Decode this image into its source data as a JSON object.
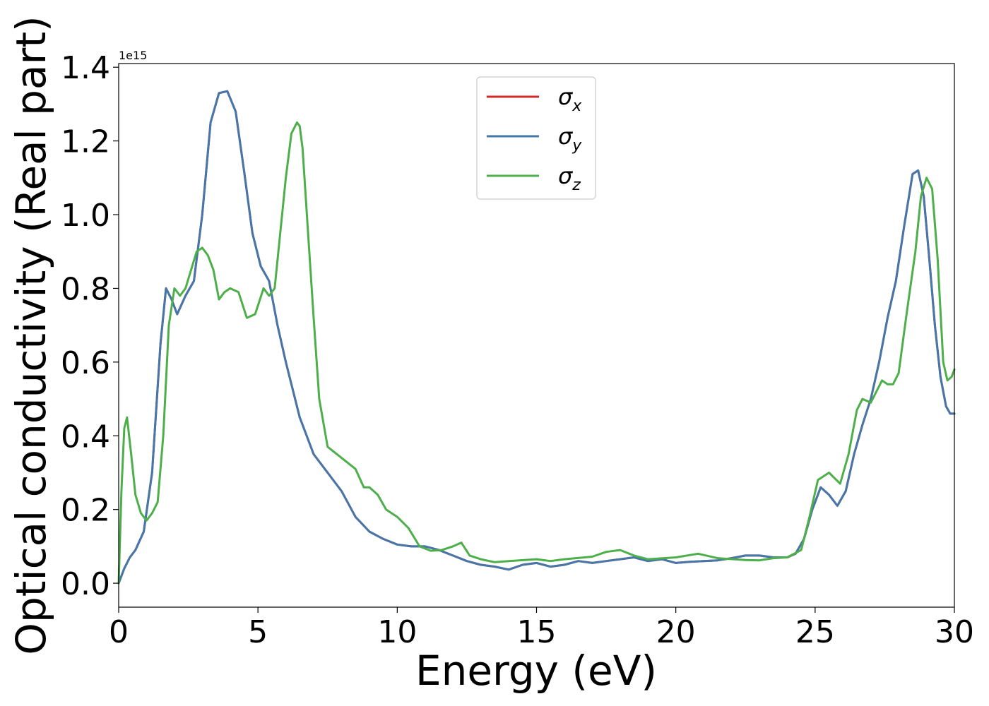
{
  "chart_data": {
    "type": "line",
    "title": "",
    "xlabel": "Energy (eV)",
    "ylabel": "Optical conductivity (Real part)",
    "y_offset_text": "1e15",
    "y_scale": 1000000000000000.0,
    "xlim": [
      0,
      30
    ],
    "ylim": [
      -0.065,
      1.41
    ],
    "x_ticks": [
      0,
      5,
      10,
      15,
      20,
      25,
      30
    ],
    "x_tick_labels": [
      "0",
      "5",
      "10",
      "15",
      "20",
      "25",
      "30"
    ],
    "y_ticks": [
      0.0,
      0.2,
      0.4,
      0.6,
      0.8,
      1.0,
      1.2,
      1.4
    ],
    "y_tick_labels": [
      "0.0",
      "0.2",
      "0.4",
      "0.6",
      "0.8",
      "1.0",
      "1.2",
      "1.4"
    ],
    "grid": false,
    "legend_position": "upper-center",
    "series": [
      {
        "name": "σx",
        "symbol": "σ",
        "subscript": "x",
        "color": "#d62728",
        "x": [
          0.0,
          0.2,
          0.4,
          0.6,
          0.9,
          1.2,
          1.5,
          1.7,
          1.9,
          2.1,
          2.4,
          2.7,
          3.0,
          3.3,
          3.6,
          3.9,
          4.2,
          4.5,
          4.8,
          5.1,
          5.4,
          5.7,
          6.0,
          6.5,
          7.0,
          7.5,
          8.0,
          8.5,
          9.0,
          9.5,
          10.0,
          10.5,
          11.0,
          11.5,
          12.0,
          12.5,
          13.0,
          13.5,
          14.0,
          14.5,
          15.0,
          15.5,
          16.0,
          16.5,
          17.0,
          17.5,
          18.0,
          18.5,
          19.0,
          19.5,
          20.0,
          20.5,
          21.0,
          21.5,
          22.0,
          22.5,
          23.0,
          23.5,
          24.0,
          24.3,
          24.6,
          24.9,
          25.2,
          25.5,
          25.8,
          26.1,
          26.4,
          26.7,
          27.0,
          27.3,
          27.6,
          27.9,
          28.2,
          28.5,
          28.7,
          28.9,
          29.1,
          29.3,
          29.5,
          29.7,
          29.85,
          30.0
        ],
        "y": [
          0.0,
          0.04,
          0.07,
          0.09,
          0.14,
          0.3,
          0.65,
          0.8,
          0.77,
          0.73,
          0.78,
          0.82,
          1.0,
          1.25,
          1.33,
          1.335,
          1.28,
          1.12,
          0.95,
          0.86,
          0.82,
          0.7,
          0.6,
          0.45,
          0.35,
          0.3,
          0.25,
          0.18,
          0.14,
          0.12,
          0.105,
          0.1,
          0.1,
          0.09,
          0.075,
          0.06,
          0.05,
          0.045,
          0.037,
          0.05,
          0.055,
          0.045,
          0.05,
          0.06,
          0.055,
          0.06,
          0.065,
          0.07,
          0.06,
          0.065,
          0.055,
          0.058,
          0.06,
          0.062,
          0.068,
          0.075,
          0.075,
          0.07,
          0.07,
          0.08,
          0.12,
          0.2,
          0.26,
          0.24,
          0.21,
          0.25,
          0.35,
          0.43,
          0.5,
          0.6,
          0.72,
          0.82,
          0.97,
          1.11,
          1.12,
          1.05,
          0.88,
          0.7,
          0.56,
          0.48,
          0.46,
          0.46
        ]
      },
      {
        "name": "σy",
        "symbol": "σ",
        "subscript": "y",
        "color": "#4477aa",
        "x": [
          0.0,
          0.2,
          0.4,
          0.6,
          0.9,
          1.2,
          1.5,
          1.7,
          1.9,
          2.1,
          2.4,
          2.7,
          3.0,
          3.3,
          3.6,
          3.9,
          4.2,
          4.5,
          4.8,
          5.1,
          5.4,
          5.7,
          6.0,
          6.5,
          7.0,
          7.5,
          8.0,
          8.5,
          9.0,
          9.5,
          10.0,
          10.5,
          11.0,
          11.5,
          12.0,
          12.5,
          13.0,
          13.5,
          14.0,
          14.5,
          15.0,
          15.5,
          16.0,
          16.5,
          17.0,
          17.5,
          18.0,
          18.5,
          19.0,
          19.5,
          20.0,
          20.5,
          21.0,
          21.5,
          22.0,
          22.5,
          23.0,
          23.5,
          24.0,
          24.3,
          24.6,
          24.9,
          25.2,
          25.5,
          25.8,
          26.1,
          26.4,
          26.7,
          27.0,
          27.3,
          27.6,
          27.9,
          28.2,
          28.5,
          28.7,
          28.9,
          29.1,
          29.3,
          29.5,
          29.7,
          29.85,
          30.0
        ],
        "y": [
          0.0,
          0.04,
          0.07,
          0.09,
          0.14,
          0.3,
          0.65,
          0.8,
          0.77,
          0.73,
          0.78,
          0.82,
          1.0,
          1.25,
          1.33,
          1.335,
          1.28,
          1.12,
          0.95,
          0.86,
          0.82,
          0.7,
          0.6,
          0.45,
          0.35,
          0.3,
          0.25,
          0.18,
          0.14,
          0.12,
          0.105,
          0.1,
          0.1,
          0.09,
          0.075,
          0.06,
          0.05,
          0.045,
          0.037,
          0.05,
          0.055,
          0.045,
          0.05,
          0.06,
          0.055,
          0.06,
          0.065,
          0.07,
          0.06,
          0.065,
          0.055,
          0.058,
          0.06,
          0.062,
          0.068,
          0.075,
          0.075,
          0.07,
          0.07,
          0.08,
          0.12,
          0.2,
          0.26,
          0.24,
          0.21,
          0.25,
          0.35,
          0.43,
          0.5,
          0.6,
          0.72,
          0.82,
          0.97,
          1.11,
          1.12,
          1.05,
          0.88,
          0.7,
          0.56,
          0.48,
          0.46,
          0.46
        ]
      },
      {
        "name": "σz",
        "symbol": "σ",
        "subscript": "z",
        "color": "#4daf4a",
        "x": [
          0.0,
          0.1,
          0.2,
          0.3,
          0.45,
          0.6,
          0.8,
          1.0,
          1.2,
          1.4,
          1.6,
          1.8,
          2.0,
          2.2,
          2.4,
          2.6,
          2.8,
          3.0,
          3.2,
          3.4,
          3.6,
          3.8,
          4.0,
          4.3,
          4.6,
          4.9,
          5.2,
          5.4,
          5.6,
          5.8,
          6.0,
          6.2,
          6.4,
          6.5,
          6.6,
          6.8,
          7.0,
          7.2,
          7.5,
          8.0,
          8.5,
          8.8,
          9.0,
          9.3,
          9.6,
          10.0,
          10.4,
          10.8,
          11.2,
          11.6,
          12.0,
          12.3,
          12.6,
          13.0,
          13.5,
          14.0,
          15.0,
          15.5,
          16.0,
          17.0,
          17.5,
          18.0,
          18.5,
          19.0,
          20.0,
          20.8,
          21.5,
          22.5,
          23.0,
          23.5,
          24.0,
          24.5,
          24.8,
          25.1,
          25.5,
          25.9,
          26.2,
          26.5,
          26.7,
          27.0,
          27.2,
          27.4,
          27.6,
          27.8,
          28.0,
          28.3,
          28.6,
          28.8,
          29.0,
          29.2,
          29.4,
          29.6,
          29.75,
          29.9,
          30.0
        ],
        "y": [
          0.0,
          0.25,
          0.42,
          0.45,
          0.35,
          0.24,
          0.19,
          0.17,
          0.19,
          0.22,
          0.4,
          0.7,
          0.8,
          0.78,
          0.8,
          0.85,
          0.9,
          0.91,
          0.89,
          0.85,
          0.77,
          0.79,
          0.8,
          0.79,
          0.72,
          0.73,
          0.8,
          0.78,
          0.8,
          0.95,
          1.1,
          1.22,
          1.25,
          1.24,
          1.18,
          0.95,
          0.72,
          0.5,
          0.37,
          0.34,
          0.31,
          0.26,
          0.26,
          0.24,
          0.2,
          0.18,
          0.15,
          0.1,
          0.088,
          0.09,
          0.1,
          0.11,
          0.075,
          0.065,
          0.057,
          0.06,
          0.065,
          0.06,
          0.065,
          0.072,
          0.085,
          0.09,
          0.075,
          0.065,
          0.07,
          0.08,
          0.068,
          0.063,
          0.062,
          0.068,
          0.07,
          0.09,
          0.18,
          0.28,
          0.3,
          0.27,
          0.35,
          0.47,
          0.5,
          0.49,
          0.52,
          0.55,
          0.54,
          0.54,
          0.57,
          0.74,
          0.9,
          1.05,
          1.1,
          1.07,
          0.88,
          0.6,
          0.55,
          0.56,
          0.58
        ]
      }
    ]
  }
}
